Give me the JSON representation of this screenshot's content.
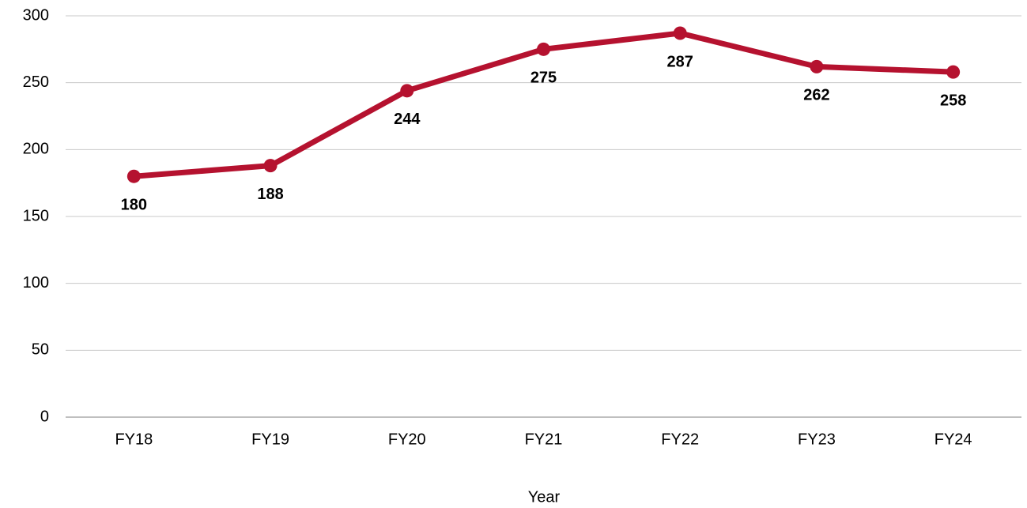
{
  "chart_data": {
    "type": "line",
    "x_label": "Year",
    "categories": [
      "FY18",
      "FY19",
      "FY20",
      "FY21",
      "FY22",
      "FY23",
      "FY24"
    ],
    "values": [
      180,
      188,
      244,
      275,
      287,
      262,
      258
    ],
    "color": "#b5122f",
    "ylim": [
      0,
      300
    ],
    "yticks": [
      0,
      50,
      100,
      150,
      200,
      250,
      300
    ],
    "grid": true
  }
}
